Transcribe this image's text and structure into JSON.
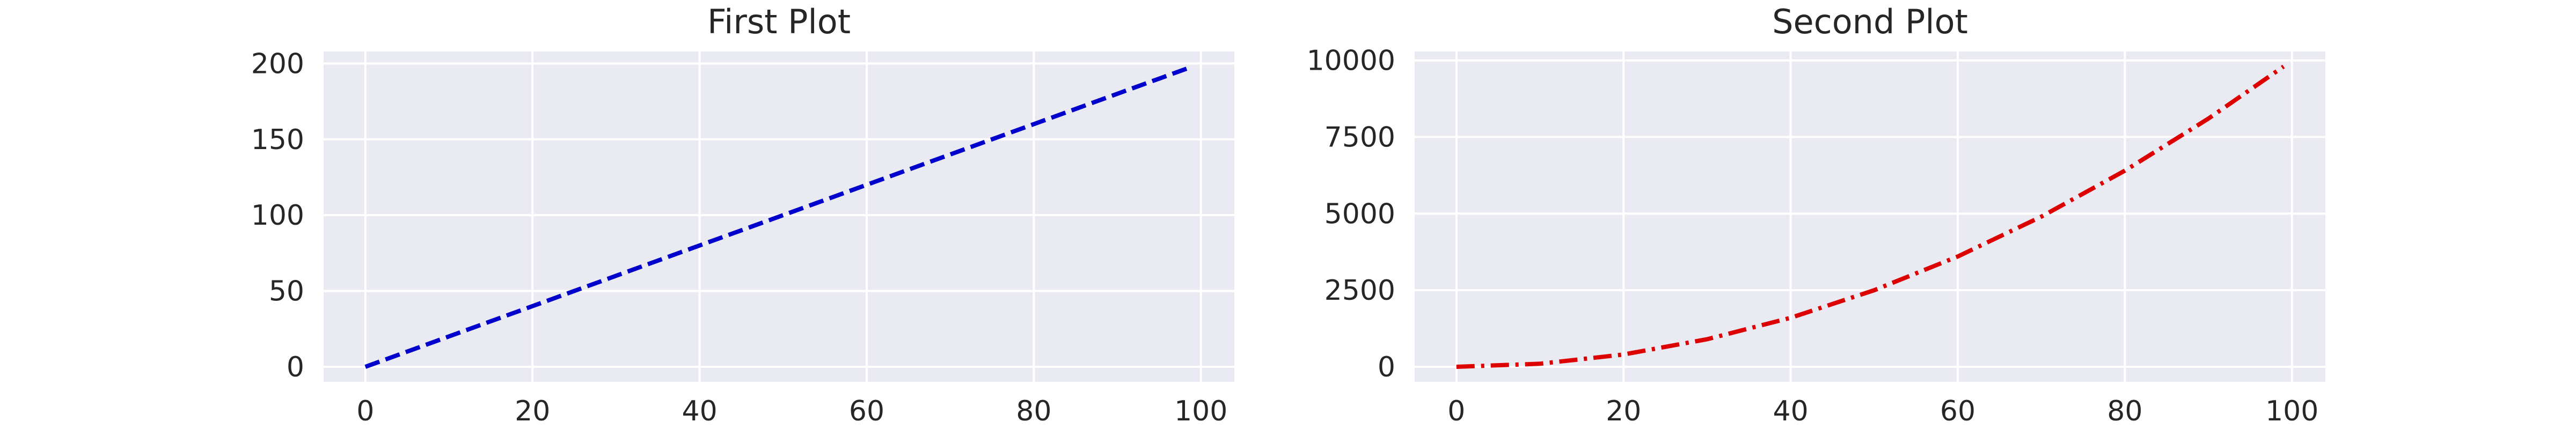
{
  "chart_data": [
    {
      "type": "line",
      "title": "First Plot",
      "xlabel": "",
      "ylabel": "",
      "xlim": [
        -5,
        104
      ],
      "ylim": [
        -9.9,
        207.9
      ],
      "xticks": [
        0,
        20,
        40,
        60,
        80,
        100
      ],
      "yticks": [
        0,
        50,
        100,
        150,
        200
      ],
      "xtick_labels": [
        "0",
        "20",
        "40",
        "60",
        "80",
        "100"
      ],
      "ytick_labels": [
        "0",
        "50",
        "100",
        "150",
        "200"
      ],
      "grid": true,
      "series": [
        {
          "formula": "y = 2x",
          "x_start": 0,
          "x_end": 99,
          "color": "#0000cc",
          "line_style": "dashed",
          "x": [
            0,
            10,
            20,
            30,
            40,
            50,
            60,
            70,
            80,
            90,
            99
          ],
          "y": [
            0,
            20,
            40,
            60,
            80,
            100,
            120,
            140,
            160,
            180,
            198
          ]
        }
      ]
    },
    {
      "type": "line",
      "title": "Second Plot",
      "xlabel": "",
      "ylabel": "",
      "xlim": [
        -5,
        104
      ],
      "ylim": [
        -490,
        10291
      ],
      "xticks": [
        0,
        20,
        40,
        60,
        80,
        100
      ],
      "yticks": [
        0,
        2500,
        5000,
        7500,
        10000
      ],
      "xtick_labels": [
        "0",
        "20",
        "40",
        "60",
        "80",
        "100"
      ],
      "ytick_labels": [
        "0",
        "2500",
        "5000",
        "7500",
        "10000"
      ],
      "grid": true,
      "series": [
        {
          "formula": "y = x^2",
          "x_start": 0,
          "x_end": 99,
          "color": "#dd0000",
          "line_style": "dashdot",
          "x": [
            0,
            10,
            20,
            30,
            40,
            50,
            60,
            70,
            80,
            90,
            99
          ],
          "y": [
            0,
            100,
            400,
            900,
            1600,
            2500,
            3600,
            4900,
            6400,
            8100,
            9801
          ]
        }
      ]
    }
  ]
}
